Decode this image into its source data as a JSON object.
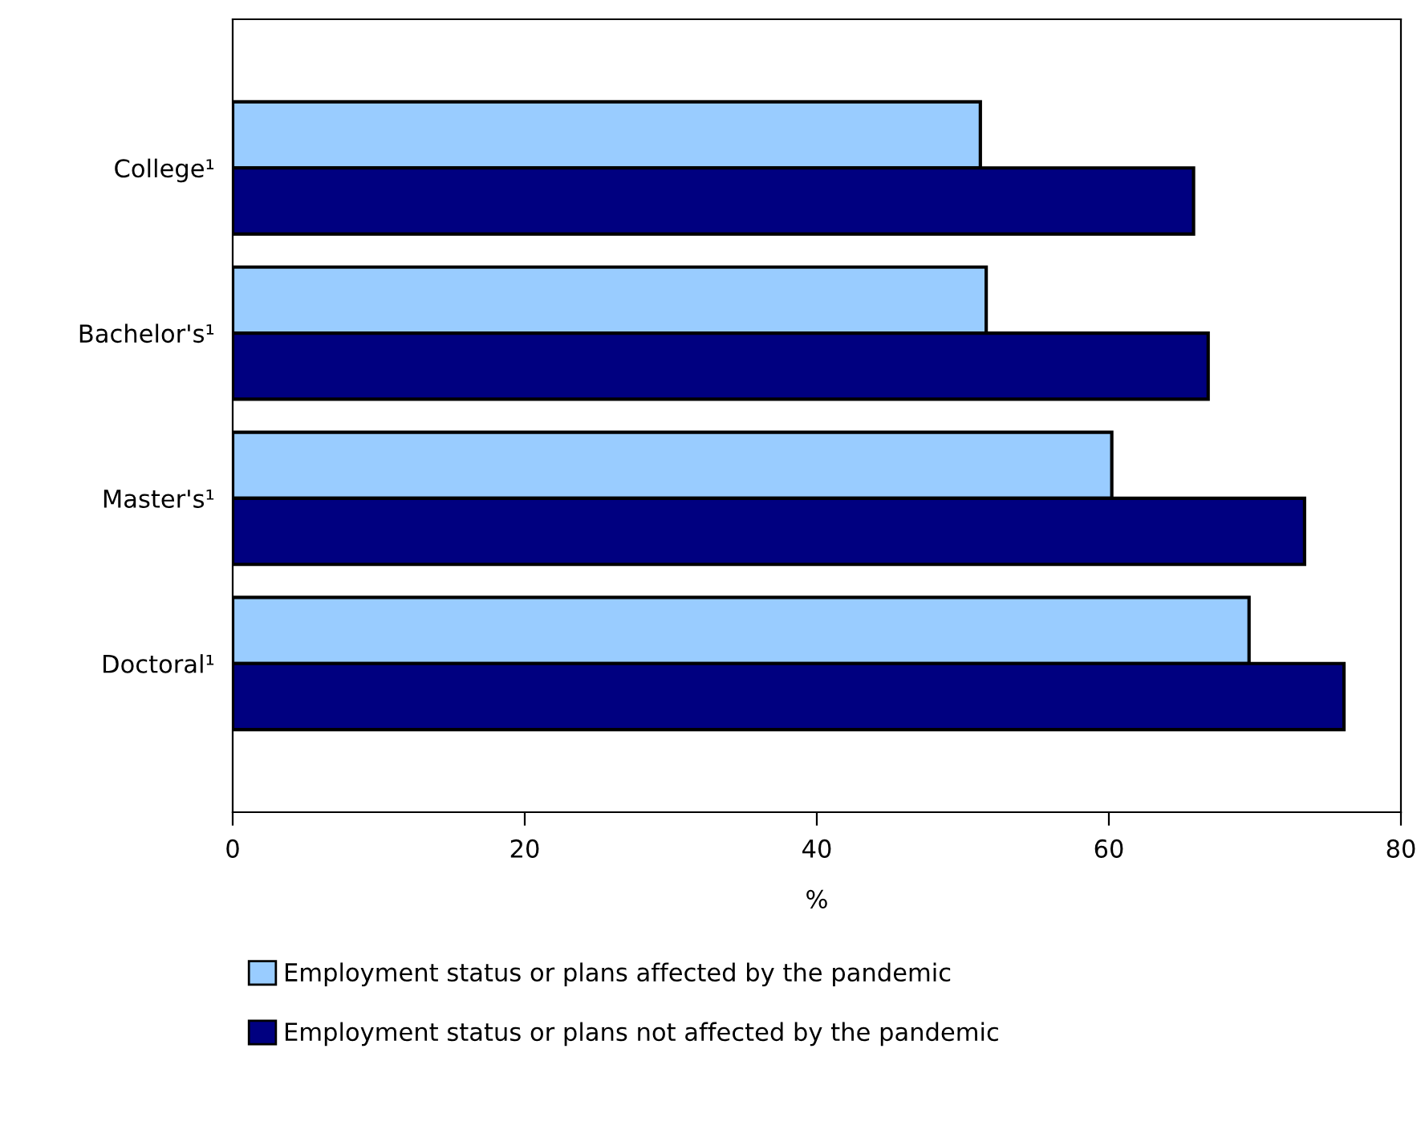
{
  "chart_data": {
    "type": "bar",
    "orientation": "horizontal",
    "xlabel": "%",
    "categories": [
      "College¹",
      "Bachelor's¹",
      "Master's¹",
      "Doctoral¹"
    ],
    "series": [
      {
        "name": "Employment status or plans affected by the pandemic",
        "color": "#99ccff",
        "values": [
          51.2,
          51.6,
          60.2,
          69.6
        ]
      },
      {
        "name": "Employment status or plans not affected by the pandemic",
        "color": "#000080",
        "values": [
          65.8,
          66.8,
          73.4,
          76.1
        ]
      }
    ],
    "xlim": [
      0,
      80
    ],
    "xticks": [
      0,
      20,
      40,
      60,
      80
    ],
    "grid": false,
    "legend": "bottom"
  }
}
